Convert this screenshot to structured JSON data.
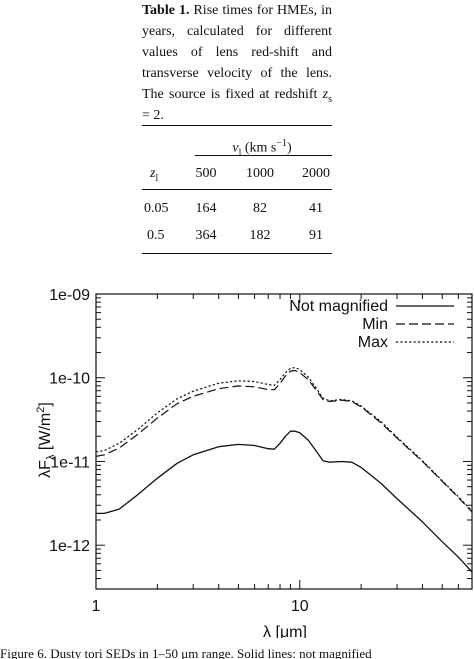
{
  "table_caption": {
    "label": "Table 1.",
    "text_1": " Rise times for HMEs, in years, calculated for different values of lens red-shift and transverse velocity of the lens. The source is fixed at redshift ",
    "z_symbol": "z",
    "z_sub": "s",
    "text_2": " = 2."
  },
  "table": {
    "group_header": {
      "var": "v",
      "sub": "l",
      "units": "(km s",
      "exp": "−1",
      "close": ")"
    },
    "row_header": {
      "var": "z",
      "sub": "l"
    },
    "columns": [
      "500",
      "1000",
      "2000"
    ],
    "rows": [
      {
        "z": "0.05",
        "values": [
          "164",
          "82",
          "41"
        ]
      },
      {
        "z": "0.5",
        "values": [
          "364",
          "182",
          "91"
        ]
      }
    ]
  },
  "chart_data": {
    "type": "line",
    "xlabel": "λ [μm]",
    "ylabel": "λF",
    "ylabel_sub": "λ",
    "ylabel_units": " [W/m",
    "ylabel_units_exp": "2",
    "ylabel_units_close": "]",
    "xscale": "log",
    "yscale": "log",
    "xlim": [
      1,
      70
    ],
    "ylim": [
      3e-13,
      1e-09
    ],
    "xticks": [
      {
        "value": 1,
        "label": "1"
      },
      {
        "value": 10,
        "label": "10"
      }
    ],
    "yticks": [
      {
        "value": 1e-12,
        "label": "1e-12"
      },
      {
        "value": 1e-11,
        "label": "1e-11"
      },
      {
        "value": 1e-10,
        "label": "1e-10"
      },
      {
        "value": 1e-09,
        "label": "1e-09"
      }
    ],
    "legend_position": "top-right",
    "grid": false,
    "series": [
      {
        "name": "Not magnified",
        "style": "solid",
        "x": [
          1,
          1.1,
          1.3,
          1.6,
          2.0,
          2.5,
          3.0,
          4.0,
          5.0,
          6.0,
          7.0,
          7.5,
          8.0,
          8.5,
          9.0,
          9.5,
          10.0,
          11.0,
          12.0,
          13.0,
          14.0,
          16.0,
          18.0,
          20.0,
          25.0,
          30.0,
          40.0,
          50.0,
          60.0,
          70.0
        ],
        "y": [
          2.4e-12,
          2.4e-12,
          2.7e-12,
          4e-12,
          6.3e-12,
          9.5e-12,
          1.2e-11,
          1.5e-11,
          1.6e-11,
          1.55e-11,
          1.42e-11,
          1.4e-11,
          1.65e-11,
          2e-11,
          2.3e-11,
          2.3e-11,
          2.2e-11,
          1.8e-11,
          1.35e-11,
          1.02e-11,
          9.8e-12,
          1e-11,
          9.8e-12,
          8.5e-12,
          5.5e-12,
          3.6e-12,
          1.9e-12,
          1.1e-12,
          7.2e-13,
          4.8e-13
        ]
      },
      {
        "name": "Min",
        "style": "dashed",
        "x": [
          1,
          1.1,
          1.3,
          1.6,
          2.0,
          2.5,
          3.0,
          4.0,
          5.0,
          6.0,
          7.0,
          7.5,
          8.0,
          8.5,
          9.0,
          9.5,
          10.0,
          11.0,
          12.0,
          13.0,
          14.0,
          16.0,
          18.0,
          20.0,
          25.0,
          30.0,
          40.0,
          50.0,
          60.0,
          70.0
        ],
        "y": [
          1.15e-11,
          1.2e-11,
          1.45e-11,
          2.1e-11,
          3.3e-11,
          4.9e-11,
          6e-11,
          7.4e-11,
          8e-11,
          7.8e-11,
          7.2e-11,
          7.2e-11,
          8.5e-11,
          1.05e-10,
          1.2e-10,
          1.22e-10,
          1.15e-10,
          9.5e-11,
          7.2e-11,
          5.5e-11,
          5.2e-11,
          5.4e-11,
          5.2e-11,
          4.5e-11,
          2.9e-11,
          1.9e-11,
          1e-11,
          5.8e-12,
          3.7e-12,
          2.5e-12
        ]
      },
      {
        "name": "Max",
        "style": "dotted",
        "x": [
          1,
          1.1,
          1.3,
          1.6,
          2.0,
          2.5,
          3.0,
          4.0,
          5.0,
          6.0,
          7.0,
          7.5,
          8.0,
          8.5,
          9.0,
          9.5,
          10.0,
          11.0,
          12.0,
          13.0,
          14.0,
          16.0,
          18.0,
          20.0,
          25.0,
          30.0,
          40.0,
          50.0,
          60.0,
          70.0
        ],
        "y": [
          1.3e-11,
          1.35e-11,
          1.65e-11,
          2.4e-11,
          3.8e-11,
          5.6e-11,
          6.9e-11,
          8.6e-11,
          9.2e-11,
          9e-11,
          8.3e-11,
          8.1e-11,
          9.5e-11,
          1.15e-10,
          1.3e-10,
          1.32e-10,
          1.25e-10,
          1.02e-10,
          7.6e-11,
          5.7e-11,
          5.3e-11,
          5.5e-11,
          5.3e-11,
          4.6e-11,
          3e-11,
          1.95e-11,
          1.02e-11,
          5.9e-12,
          3.8e-12,
          2.55e-12
        ]
      }
    ]
  },
  "figure_caption": {
    "text": "Figure 6. Dusty tori SEDs in 1–50 μm range. Solid lines: not magnified"
  }
}
